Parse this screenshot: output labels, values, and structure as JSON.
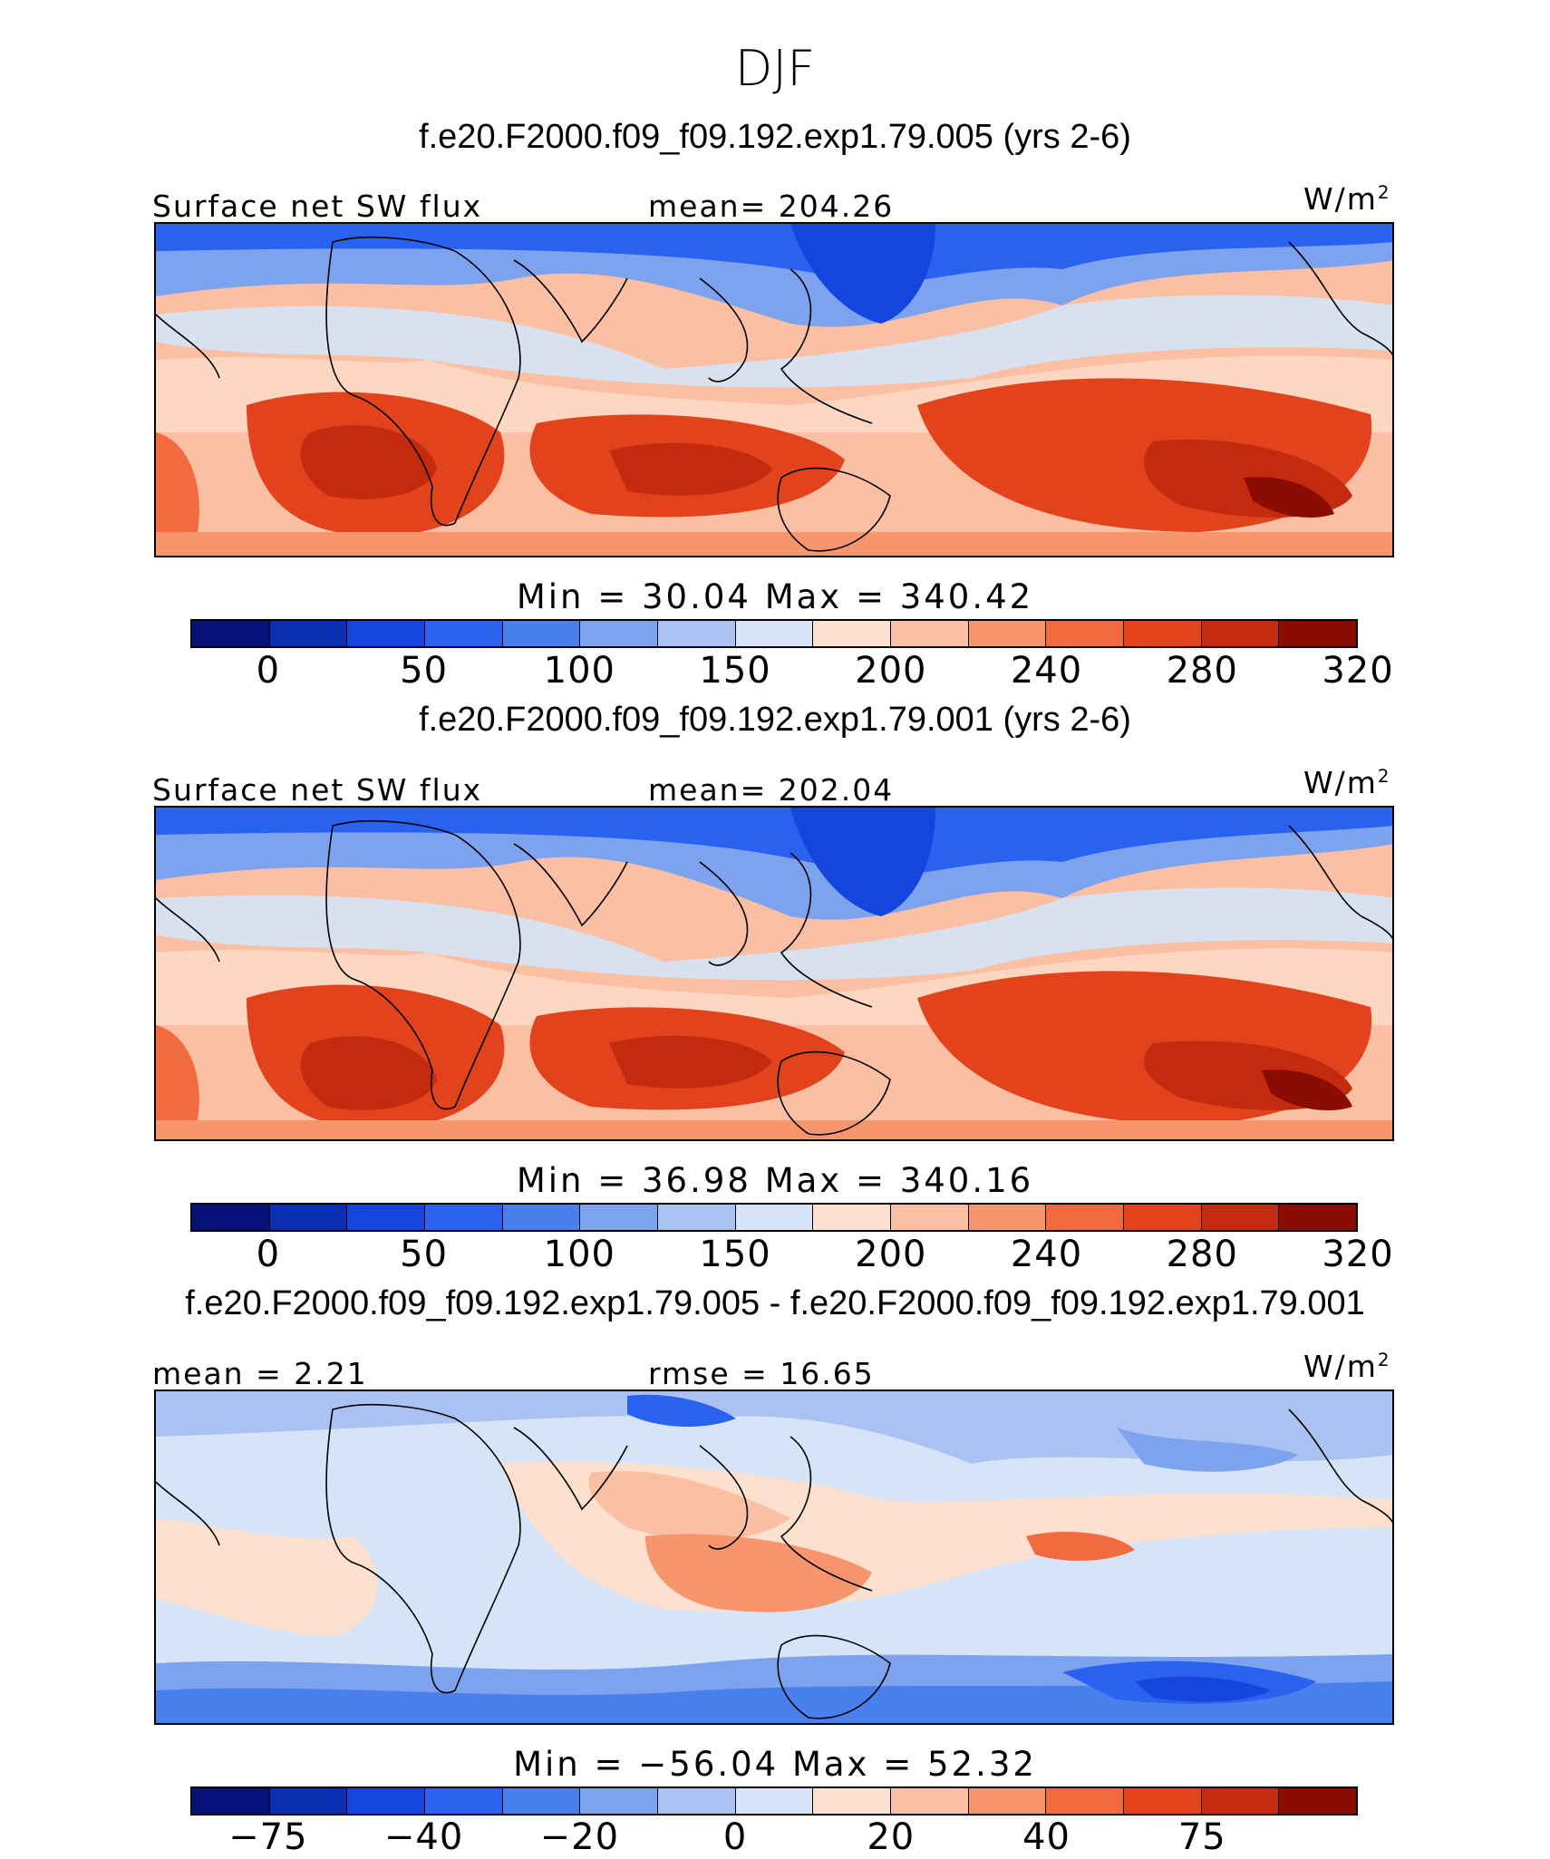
{
  "figure": {
    "title": "DJF",
    "units": "W/m",
    "units_exp": "2"
  },
  "palette": {
    "abs": [
      "#08107a",
      "#0a2fb3",
      "#1446de",
      "#2a62f0",
      "#4a80ee",
      "#7da2ee",
      "#a9c2f2",
      "#d5e4f7",
      "#fde1ce",
      "#fbbfa3",
      "#f7956d",
      "#f16a40",
      "#e2431c",
      "#c32a0e",
      "#8b0c04"
    ],
    "diff": [
      "#08107a",
      "#0a2fb3",
      "#1446de",
      "#2a62f0",
      "#4a80ee",
      "#7da2ee",
      "#a9c2f2",
      "#d5e4f7",
      "#fde1ce",
      "#fbbfa3",
      "#f7956d",
      "#f16a40",
      "#e2431c",
      "#c32a0e",
      "#8b0c04"
    ]
  },
  "panels": [
    {
      "case": "f.e20.F2000.f09_f09.192.exp1.79.005 (yrs 2-6)",
      "left_label": "Surface net SW flux",
      "center_label": "mean= 204.26",
      "minmax": "Min =   30.04  Max =  340.42",
      "ticks": [
        "0",
        "50",
        "100",
        "150",
        "200",
        "240",
        "280",
        "320"
      ],
      "kind": "abs"
    },
    {
      "case": "f.e20.F2000.f09_f09.192.exp1.79.001 (yrs 2-6)",
      "left_label": "Surface net SW flux",
      "center_label": "mean= 202.04",
      "minmax": "Min =   36.98  Max =  340.16",
      "ticks": [
        "0",
        "50",
        "100",
        "150",
        "200",
        "240",
        "280",
        "320"
      ],
      "kind": "abs"
    },
    {
      "case": "f.e20.F2000.f09_f09.192.exp1.79.005 - f.e20.F2000.f09_f09.192.exp1.79.001",
      "left_label": "mean =    2.21",
      "center_label": "rmse =   16.65",
      "minmax": "Min = −56.04  Max =   52.32",
      "ticks": [
        "−75",
        "−40",
        "−20",
        "0",
        "20",
        "40",
        "75"
      ],
      "kind": "diff"
    }
  ]
}
